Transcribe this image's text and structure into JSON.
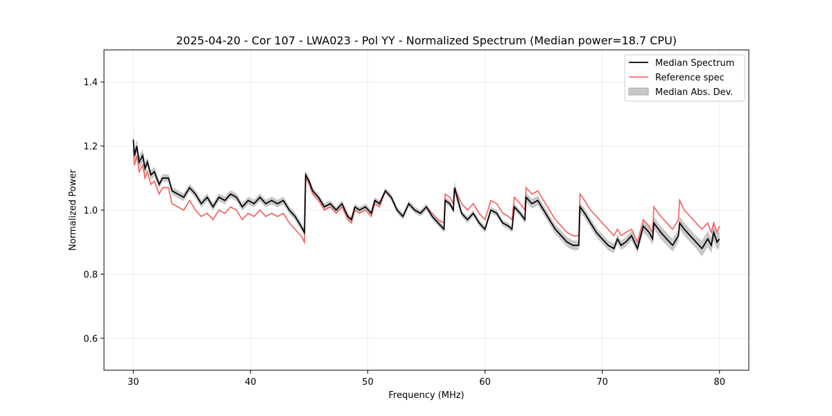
{
  "chart_data": {
    "type": "line",
    "title": "2025-04-20 - Cor 107 - LWA023 - Pol YY - Normalized Spectrum (Median power=18.7 CPU)",
    "xlabel": "Frequency (MHz)",
    "ylabel": "Normalized Power",
    "xlim": [
      27.5,
      82.5
    ],
    "ylim": [
      0.5,
      1.5
    ],
    "xticks": [
      30,
      40,
      50,
      60,
      70,
      80
    ],
    "yticks": [
      0.6,
      0.8,
      1.0,
      1.2,
      1.4
    ],
    "xtick_labels": [
      "30",
      "40",
      "50",
      "60",
      "70",
      "80"
    ],
    "ytick_labels": [
      "0.6",
      "0.8",
      "1.0",
      "1.2",
      "1.4"
    ],
    "grid": true,
    "legend_position": "top-right",
    "colors": {
      "median": "#000000",
      "reference": "#f06a6a",
      "mad": "#c8c8c8"
    },
    "series": [
      {
        "name": "Median Spectrum",
        "x": [
          30.0,
          30.1,
          30.3,
          30.5,
          30.8,
          31.0,
          31.2,
          31.5,
          31.8,
          32.2,
          32.5,
          33.0,
          33.3,
          33.8,
          34.3,
          34.8,
          35.3,
          35.8,
          36.3,
          36.8,
          37.3,
          37.8,
          38.3,
          38.8,
          39.3,
          39.8,
          40.3,
          40.8,
          41.3,
          41.8,
          42.3,
          42.8,
          43.3,
          43.8,
          44.3,
          44.6,
          44.7,
          45.0,
          45.3,
          45.8,
          46.3,
          46.8,
          47.3,
          47.8,
          48.3,
          48.6,
          48.9,
          49.3,
          49.8,
          50.3,
          50.6,
          51.0,
          51.5,
          52.0,
          52.5,
          53.0,
          53.5,
          54.0,
          54.5,
          55.0,
          55.5,
          56.0,
          56.5,
          56.6,
          57.0,
          57.3,
          57.4,
          58.0,
          58.5,
          59.0,
          59.5,
          60.0,
          60.5,
          61.0,
          61.5,
          62.0,
          62.3,
          62.5,
          63.0,
          63.4,
          63.5,
          64.0,
          64.5,
          65.0,
          65.5,
          66.0,
          66.5,
          67.0,
          67.5,
          68.0,
          68.1,
          68.5,
          69.0,
          69.5,
          70.0,
          70.5,
          71.0,
          71.3,
          71.6,
          72.0,
          72.5,
          73.0,
          73.5,
          74.0,
          74.3,
          74.4,
          75.0,
          75.5,
          76.0,
          76.5,
          76.6,
          77.0,
          77.5,
          78.0,
          78.5,
          79.0,
          79.3,
          79.5,
          79.8,
          80.0
        ],
        "y": [
          1.22,
          1.17,
          1.2,
          1.15,
          1.17,
          1.13,
          1.15,
          1.11,
          1.12,
          1.08,
          1.1,
          1.1,
          1.06,
          1.05,
          1.04,
          1.07,
          1.05,
          1.02,
          1.04,
          1.01,
          1.04,
          1.03,
          1.05,
          1.04,
          1.01,
          1.03,
          1.02,
          1.04,
          1.02,
          1.03,
          1.02,
          1.03,
          1.0,
          0.98,
          0.95,
          0.93,
          1.11,
          1.09,
          1.06,
          1.04,
          1.01,
          1.02,
          1.0,
          1.02,
          0.98,
          0.97,
          1.01,
          1.0,
          1.01,
          0.99,
          1.03,
          1.02,
          1.06,
          1.04,
          1.0,
          0.98,
          1.02,
          1.0,
          0.99,
          1.01,
          0.98,
          0.96,
          0.94,
          1.03,
          1.02,
          1.0,
          1.07,
          0.99,
          0.97,
          0.99,
          0.96,
          0.94,
          1.0,
          0.99,
          0.96,
          0.95,
          0.94,
          1.01,
          0.99,
          0.97,
          1.04,
          1.02,
          1.03,
          1.0,
          0.97,
          0.94,
          0.92,
          0.9,
          0.89,
          0.89,
          1.01,
          0.99,
          0.96,
          0.93,
          0.91,
          0.89,
          0.88,
          0.91,
          0.89,
          0.9,
          0.92,
          0.88,
          0.95,
          0.93,
          0.91,
          0.96,
          0.93,
          0.91,
          0.89,
          0.92,
          0.96,
          0.94,
          0.92,
          0.9,
          0.88,
          0.91,
          0.89,
          0.93,
          0.9,
          0.91
        ]
      },
      {
        "name": "Reference spec",
        "x": [
          30.0,
          30.1,
          30.3,
          30.5,
          30.8,
          31.0,
          31.2,
          31.5,
          31.8,
          32.2,
          32.5,
          33.0,
          33.3,
          33.8,
          34.3,
          34.8,
          35.3,
          35.8,
          36.3,
          36.8,
          37.3,
          37.8,
          38.3,
          38.8,
          39.3,
          39.8,
          40.3,
          40.8,
          41.3,
          41.8,
          42.3,
          42.8,
          43.3,
          43.8,
          44.3,
          44.6,
          44.7,
          45.0,
          45.3,
          45.8,
          46.3,
          46.8,
          47.3,
          47.8,
          48.3,
          48.6,
          48.9,
          49.3,
          49.8,
          50.3,
          50.6,
          51.0,
          51.5,
          52.0,
          52.5,
          53.0,
          53.5,
          54.0,
          54.5,
          55.0,
          55.5,
          56.0,
          56.5,
          56.6,
          57.0,
          57.3,
          57.4,
          58.0,
          58.5,
          59.0,
          59.5,
          60.0,
          60.5,
          61.0,
          61.5,
          62.0,
          62.3,
          62.5,
          63.0,
          63.4,
          63.5,
          64.0,
          64.5,
          65.0,
          65.5,
          66.0,
          66.5,
          67.0,
          67.5,
          68.0,
          68.1,
          68.5,
          69.0,
          69.5,
          70.0,
          70.5,
          71.0,
          71.3,
          71.6,
          72.0,
          72.5,
          73.0,
          73.5,
          74.0,
          74.3,
          74.4,
          75.0,
          75.5,
          76.0,
          76.5,
          76.6,
          77.0,
          77.5,
          78.0,
          78.5,
          79.0,
          79.3,
          79.5,
          79.8,
          80.0
        ],
        "y": [
          1.19,
          1.14,
          1.17,
          1.12,
          1.14,
          1.1,
          1.12,
          1.08,
          1.09,
          1.05,
          1.07,
          1.07,
          1.02,
          1.01,
          1.0,
          1.03,
          1.0,
          0.98,
          0.99,
          0.97,
          1.0,
          0.99,
          1.01,
          1.0,
          0.97,
          0.99,
          0.98,
          1.0,
          0.98,
          0.99,
          0.98,
          0.99,
          0.96,
          0.94,
          0.92,
          0.9,
          1.1,
          1.08,
          1.05,
          1.03,
          1.0,
          1.01,
          0.99,
          1.01,
          0.97,
          0.96,
          1.0,
          0.99,
          1.0,
          0.98,
          1.02,
          1.01,
          1.06,
          1.04,
          1.0,
          0.98,
          1.02,
          1.0,
          0.99,
          1.01,
          0.99,
          0.97,
          0.96,
          1.05,
          1.04,
          1.02,
          1.07,
          1.02,
          1.0,
          1.02,
          0.99,
          0.97,
          1.03,
          1.02,
          0.99,
          0.98,
          0.97,
          1.04,
          1.02,
          1.0,
          1.07,
          1.05,
          1.06,
          1.03,
          1.0,
          0.97,
          0.95,
          0.93,
          0.92,
          0.92,
          1.05,
          1.03,
          1.0,
          0.98,
          0.96,
          0.94,
          0.92,
          0.94,
          0.92,
          0.93,
          0.94,
          0.9,
          0.97,
          0.95,
          0.93,
          1.01,
          0.98,
          0.96,
          0.94,
          0.97,
          1.03,
          1.0,
          0.98,
          0.96,
          0.94,
          0.96,
          0.93,
          0.96,
          0.93,
          0.95
        ]
      }
    ],
    "mad_band": {
      "name": "Median Abs. Dev.",
      "width": [
        0.03,
        0.02,
        0.02,
        0.02,
        0.02,
        0.02,
        0.015,
        0.015,
        0.015,
        0.012,
        0.012,
        0.012,
        0.012,
        0.012,
        0.012,
        0.012,
        0.012,
        0.012,
        0.012,
        0.012,
        0.012,
        0.012,
        0.012,
        0.012,
        0.012,
        0.012,
        0.012,
        0.012,
        0.012,
        0.012,
        0.012,
        0.012,
        0.012,
        0.012,
        0.012,
        0.012,
        0.015,
        0.012,
        0.01,
        0.01,
        0.01,
        0.01,
        0.01,
        0.01,
        0.01,
        0.01,
        0.01,
        0.01,
        0.01,
        0.01,
        0.01,
        0.01,
        0.01,
        0.01,
        0.01,
        0.01,
        0.01,
        0.01,
        0.01,
        0.01,
        0.01,
        0.01,
        0.01,
        0.01,
        0.01,
        0.01,
        0.02,
        0.01,
        0.01,
        0.01,
        0.01,
        0.01,
        0.01,
        0.01,
        0.01,
        0.01,
        0.01,
        0.01,
        0.01,
        0.01,
        0.015,
        0.015,
        0.015,
        0.015,
        0.015,
        0.015,
        0.015,
        0.015,
        0.015,
        0.015,
        0.015,
        0.015,
        0.015,
        0.015,
        0.015,
        0.015,
        0.015,
        0.015,
        0.015,
        0.015,
        0.015,
        0.015,
        0.02,
        0.02,
        0.02,
        0.02,
        0.02,
        0.02,
        0.02,
        0.02,
        0.02,
        0.02,
        0.02,
        0.02,
        0.025,
        0.025,
        0.025,
        0.025,
        0.025,
        0.025
      ]
    },
    "legend": [
      "Median Spectrum",
      "Reference spec",
      "Median Abs. Dev."
    ]
  }
}
